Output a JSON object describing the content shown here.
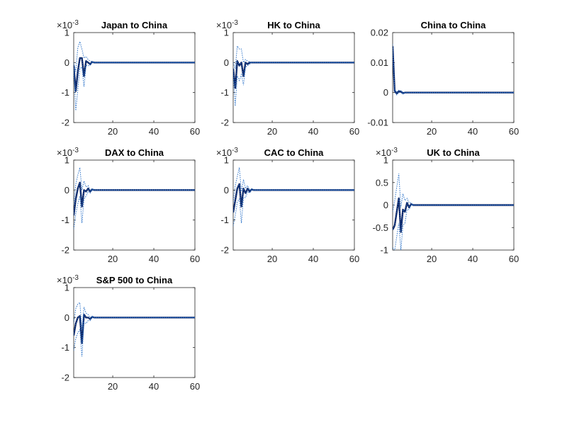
{
  "figure": {
    "colors": {
      "response": "#0b1f5c",
      "bands": "#2d73c9",
      "axis": "#262626"
    }
  },
  "chart_data": [
    {
      "type": "line",
      "title": "Japan to China",
      "exponent_label": "×10",
      "exponent_power": "-3",
      "xlim": [
        1,
        60
      ],
      "ylim": [
        -2,
        1
      ],
      "xticks": [
        20,
        40,
        60
      ],
      "xticklabels": [
        "20",
        "40",
        "60"
      ],
      "yticks": [
        -2,
        -1,
        0,
        1
      ],
      "yticklabels": [
        "-2",
        "-1",
        "0",
        "1"
      ],
      "series": [
        {
          "role": "response",
          "x": [
            1,
            2,
            3,
            4,
            5,
            6,
            7,
            8,
            9,
            10,
            11,
            12,
            60
          ],
          "y": [
            -0.1,
            -0.95,
            -0.3,
            0.15,
            0.15,
            -0.45,
            0.05,
            0.0,
            -0.05,
            0.02,
            0.0,
            0.0,
            0.0
          ]
        },
        {
          "role": "upper",
          "x": [
            1,
            2,
            3,
            4,
            5,
            6,
            7,
            8,
            9,
            10,
            11,
            12,
            60
          ],
          "y": [
            0.0,
            -0.3,
            0.5,
            0.7,
            0.45,
            0.15,
            0.2,
            0.1,
            0.05,
            0.03,
            0.0,
            0.0,
            0.0
          ]
        },
        {
          "role": "lower",
          "x": [
            1,
            2,
            3,
            4,
            5,
            6,
            7,
            8,
            9,
            10,
            11,
            12,
            60
          ],
          "y": [
            -0.2,
            -1.6,
            -0.9,
            -0.2,
            -0.15,
            -0.8,
            -0.1,
            -0.1,
            -0.1,
            0.0,
            0.0,
            0.0,
            0.0
          ]
        }
      ]
    },
    {
      "type": "line",
      "title": "HK to China",
      "exponent_label": "×10",
      "exponent_power": "-3",
      "xlim": [
        1,
        60
      ],
      "ylim": [
        -2,
        1
      ],
      "xticks": [
        20,
        40,
        60
      ],
      "xticklabels": [
        "20",
        "40",
        "60"
      ],
      "yticks": [
        -2,
        -1,
        0,
        1
      ],
      "yticklabels": [
        "-2",
        "-1",
        "0",
        "1"
      ],
      "series": [
        {
          "role": "response",
          "x": [
            1,
            2,
            3,
            4,
            5,
            6,
            7,
            8,
            9,
            10,
            11,
            12,
            60
          ],
          "y": [
            -0.2,
            -0.85,
            0.05,
            -0.1,
            0.0,
            -0.45,
            0.0,
            -0.05,
            0.0,
            0.0,
            0.0,
            0.0,
            0.0
          ]
        },
        {
          "role": "upper",
          "x": [
            1,
            2,
            3,
            4,
            5,
            6,
            7,
            8,
            9,
            10,
            11,
            12,
            60
          ],
          "y": [
            0.0,
            -0.2,
            0.55,
            0.45,
            0.45,
            0.0,
            0.1,
            0.05,
            0.02,
            0.0,
            0.0,
            0.0,
            0.0
          ]
        },
        {
          "role": "lower",
          "x": [
            1,
            2,
            3,
            4,
            5,
            6,
            7,
            8,
            9,
            10,
            11,
            12,
            60
          ],
          "y": [
            -0.4,
            -1.45,
            -0.45,
            -0.6,
            -0.4,
            -0.75,
            -0.15,
            -0.1,
            -0.05,
            0.0,
            0.0,
            0.0,
            0.0
          ]
        }
      ]
    },
    {
      "type": "line",
      "title": "China to China",
      "xlim": [
        1,
        60
      ],
      "ylim": [
        -0.01,
        0.02
      ],
      "xticks": [
        20,
        40,
        60
      ],
      "xticklabels": [
        "20",
        "40",
        "60"
      ],
      "yticks": [
        -0.01,
        0,
        0.01,
        0.02
      ],
      "yticklabels": [
        "-0.01",
        "0",
        "0.01",
        "0.02"
      ],
      "series": [
        {
          "role": "response",
          "x": [
            1,
            2,
            3,
            4,
            5,
            6,
            7,
            8,
            9,
            10,
            60
          ],
          "y": [
            0.0155,
            0.0005,
            -0.0003,
            0.0004,
            0.0003,
            -0.0002,
            0.0,
            0.0,
            0.0,
            0.0,
            0.0
          ]
        },
        {
          "role": "upper",
          "x": [
            1,
            2,
            3,
            4,
            5,
            6,
            7,
            8,
            9,
            10,
            60
          ],
          "y": [
            0.0162,
            0.0009,
            0.0002,
            0.0008,
            0.0006,
            0.0001,
            0.0001,
            0.0,
            0.0,
            0.0,
            0.0
          ]
        },
        {
          "role": "lower",
          "x": [
            1,
            2,
            3,
            4,
            5,
            6,
            7,
            8,
            9,
            10,
            60
          ],
          "y": [
            0.0148,
            0.0001,
            -0.0008,
            0.0,
            0.0,
            -0.0005,
            -0.0001,
            0.0,
            0.0,
            0.0,
            0.0
          ]
        }
      ]
    },
    {
      "type": "line",
      "title": "DAX to China",
      "exponent_label": "×10",
      "exponent_power": "-3",
      "xlim": [
        1,
        60
      ],
      "ylim": [
        -2,
        1
      ],
      "xticks": [
        20,
        40,
        60
      ],
      "xticklabels": [
        "20",
        "40",
        "60"
      ],
      "yticks": [
        -2,
        -1,
        0,
        1
      ],
      "yticklabels": [
        "-2",
        "-1",
        "0",
        "1"
      ],
      "series": [
        {
          "role": "response",
          "x": [
            1,
            2,
            3,
            4,
            5,
            6,
            7,
            8,
            9,
            10,
            11,
            12,
            60
          ],
          "y": [
            -0.85,
            -0.3,
            0.05,
            0.25,
            -0.55,
            0.0,
            -0.05,
            0.05,
            -0.05,
            0.02,
            0.0,
            0.0,
            0.0
          ]
        },
        {
          "role": "upper",
          "x": [
            1,
            2,
            3,
            4,
            5,
            6,
            7,
            8,
            9,
            10,
            11,
            12,
            60
          ],
          "y": [
            -0.5,
            0.2,
            0.5,
            0.75,
            0.0,
            0.3,
            0.1,
            0.15,
            0.0,
            0.05,
            0.0,
            0.0,
            0.0
          ]
        },
        {
          "role": "lower",
          "x": [
            1,
            2,
            3,
            4,
            5,
            6,
            7,
            8,
            9,
            10,
            11,
            12,
            60
          ],
          "y": [
            -1.3,
            -0.8,
            -0.45,
            -0.2,
            -1.1,
            -0.3,
            -0.2,
            -0.05,
            -0.1,
            0.0,
            0.0,
            0.0,
            0.0
          ]
        }
      ]
    },
    {
      "type": "line",
      "title": "CAC to China",
      "exponent_label": "×10",
      "exponent_power": "-3",
      "xlim": [
        1,
        60
      ],
      "ylim": [
        -2,
        1
      ],
      "xticks": [
        20,
        40,
        60
      ],
      "xticklabels": [
        "20",
        "40",
        "60"
      ],
      "yticks": [
        -2,
        -1,
        0,
        1
      ],
      "yticklabels": [
        "-2",
        "-1",
        "0",
        "1"
      ],
      "series": [
        {
          "role": "response",
          "x": [
            1,
            2,
            3,
            4,
            5,
            6,
            7,
            8,
            9,
            10,
            11,
            12,
            60
          ],
          "y": [
            -0.75,
            -0.35,
            0.05,
            0.2,
            -0.55,
            0.05,
            -0.1,
            0.05,
            -0.05,
            0.02,
            0.0,
            0.0,
            0.0
          ]
        },
        {
          "role": "upper",
          "x": [
            1,
            2,
            3,
            4,
            5,
            6,
            7,
            8,
            9,
            10,
            11,
            12,
            60
          ],
          "y": [
            -0.4,
            0.15,
            0.45,
            0.75,
            -0.05,
            0.35,
            0.05,
            0.15,
            0.0,
            0.05,
            0.0,
            0.0,
            0.0
          ]
        },
        {
          "role": "lower",
          "x": [
            1,
            2,
            3,
            4,
            5,
            6,
            7,
            8,
            9,
            10,
            11,
            12,
            60
          ],
          "y": [
            -1.2,
            -0.85,
            -0.4,
            -0.3,
            -1.1,
            -0.25,
            -0.25,
            -0.05,
            -0.1,
            0.0,
            0.0,
            0.0,
            0.0
          ]
        }
      ]
    },
    {
      "type": "line",
      "title": "UK to China",
      "exponent_label": "×10",
      "exponent_power": "-3",
      "xlim": [
        1,
        60
      ],
      "ylim": [
        -1,
        1
      ],
      "xticks": [
        20,
        40,
        60
      ],
      "xticklabels": [
        "20",
        "40",
        "60"
      ],
      "yticks": [
        -1,
        -0.5,
        0,
        0.5,
        1
      ],
      "yticklabels": [
        "-1",
        "-0.5",
        "0",
        "0.5",
        "1"
      ],
      "series": [
        {
          "role": "response",
          "x": [
            1,
            2,
            3,
            4,
            5,
            6,
            7,
            8,
            9,
            10,
            11,
            12,
            60
          ],
          "y": [
            -0.55,
            -0.45,
            -0.15,
            0.15,
            -0.6,
            -0.1,
            -0.15,
            0.05,
            -0.05,
            0.02,
            0.0,
            0.0,
            0.0
          ]
        },
        {
          "role": "upper",
          "x": [
            1,
            2,
            3,
            4,
            5,
            6,
            7,
            8,
            9,
            10,
            11,
            12,
            60
          ],
          "y": [
            -0.15,
            0.1,
            0.4,
            0.7,
            -0.05,
            0.25,
            0.1,
            0.15,
            0.05,
            0.05,
            0.0,
            0.0,
            0.0
          ]
        },
        {
          "role": "lower",
          "x": [
            1,
            2,
            3,
            4,
            5,
            6,
            7,
            8,
            9,
            10,
            11,
            12,
            60
          ],
          "y": [
            -0.95,
            -1.0,
            -0.7,
            -0.4,
            -1.0,
            -0.45,
            -0.4,
            -0.1,
            -0.1,
            0.0,
            0.0,
            0.0,
            0.0
          ]
        }
      ]
    },
    {
      "type": "line",
      "title": "S&P 500 to China",
      "exponent_label": "×10",
      "exponent_power": "-3",
      "xlim": [
        1,
        60
      ],
      "ylim": [
        -2,
        1
      ],
      "xticks": [
        20,
        40,
        60
      ],
      "xticklabels": [
        "20",
        "40",
        "60"
      ],
      "yticks": [
        -2,
        -1,
        0,
        1
      ],
      "yticklabels": [
        "-2",
        "-1",
        "0",
        "1"
      ],
      "series": [
        {
          "role": "response",
          "x": [
            1,
            2,
            3,
            4,
            5,
            6,
            7,
            8,
            9,
            10,
            11,
            12,
            60
          ],
          "y": [
            -0.6,
            -0.2,
            0.0,
            0.05,
            -0.85,
            0.1,
            0.0,
            0.0,
            -0.05,
            0.02,
            0.0,
            0.0,
            0.0
          ]
        },
        {
          "role": "upper",
          "x": [
            1,
            2,
            3,
            4,
            5,
            6,
            7,
            8,
            9,
            10,
            11,
            12,
            60
          ],
          "y": [
            -0.2,
            0.3,
            0.45,
            0.5,
            -0.4,
            0.35,
            0.15,
            0.1,
            0.0,
            0.05,
            0.0,
            0.0,
            0.0
          ]
        },
        {
          "role": "lower",
          "x": [
            1,
            2,
            3,
            4,
            5,
            6,
            7,
            8,
            9,
            10,
            11,
            12,
            60
          ],
          "y": [
            -1.1,
            -0.7,
            -0.5,
            -0.4,
            -1.3,
            -0.15,
            -0.2,
            -0.1,
            -0.1,
            0.0,
            0.0,
            0.0,
            0.0
          ]
        }
      ]
    }
  ]
}
